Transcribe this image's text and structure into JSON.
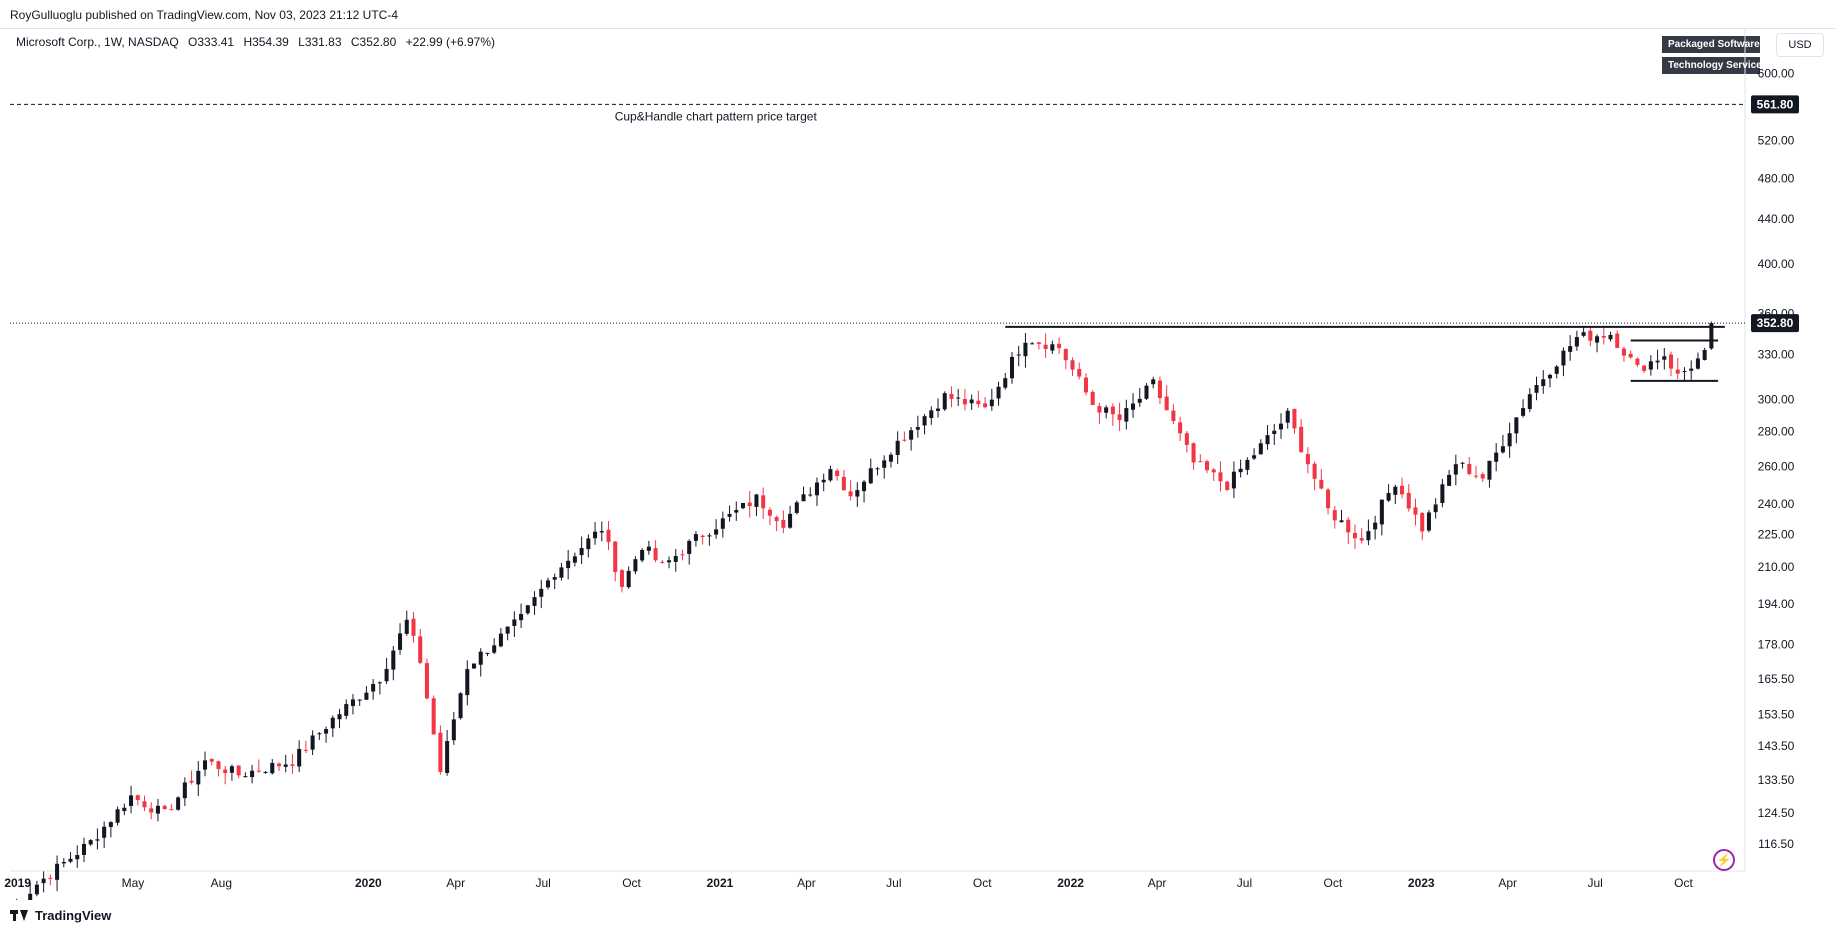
{
  "header": {
    "published": "RoyGulluoglu published on TradingView.com, Nov 03, 2023 21:12 UTC-4"
  },
  "symbol": {
    "name": "Microsoft Corp., 1W, NASDAQ",
    "open": "O333.41",
    "high": "H354.39",
    "low": "L331.83",
    "close": "C352.80",
    "change": "+22.99 (+6.97%)"
  },
  "badges": [
    "Packaged Software",
    "Technology Services"
  ],
  "currency": "USD",
  "brand": "TradingView",
  "colors": {
    "up": "#131722",
    "down": "#f23645",
    "tag": "#131722",
    "lightning": "#9c27b0"
  },
  "icons": {
    "lightning": "lightning-icon",
    "logo": "tradingview-logo-icon"
  },
  "chart_data": {
    "type": "candlestick",
    "scale": "log",
    "ylim": [
      110,
      620
    ],
    "y_ticks": [
      116.5,
      124.5,
      133.5,
      143.5,
      153.5,
      165.5,
      178.0,
      194.0,
      210.0,
      225.0,
      240.0,
      260.0,
      280.0,
      300.0,
      330.0,
      360.0,
      400.0,
      440.0,
      480.0,
      520.0,
      600.0
    ],
    "y_tick_labels": [
      "116.50",
      "124.50",
      "133.50",
      "143.50",
      "153.50",
      "165.50",
      "178.00",
      "194.00",
      "210.00",
      "225.00",
      "240.00",
      "260.00",
      "280.00",
      "300.00",
      "330.00",
      "360.00",
      "400.00",
      "440.00",
      "480.00",
      "520.00",
      "600.00"
    ],
    "x_range": [
      "2018-12-24",
      "2023-12-04"
    ],
    "x_ticks": [
      {
        "date": "2019-01-01",
        "label": "2019",
        "year": true
      },
      {
        "date": "2019-05-01",
        "label": "May",
        "year": false
      },
      {
        "date": "2019-08-01",
        "label": "Aug",
        "year": false
      },
      {
        "date": "2020-01-01",
        "label": "2020",
        "year": true
      },
      {
        "date": "2020-04-01",
        "label": "Apr",
        "year": false
      },
      {
        "date": "2020-07-01",
        "label": "Jul",
        "year": false
      },
      {
        "date": "2020-10-01",
        "label": "Oct",
        "year": false
      },
      {
        "date": "2021-01-01",
        "label": "2021",
        "year": true
      },
      {
        "date": "2021-04-01",
        "label": "Apr",
        "year": false
      },
      {
        "date": "2021-07-01",
        "label": "Jul",
        "year": false
      },
      {
        "date": "2021-10-01",
        "label": "Oct",
        "year": false
      },
      {
        "date": "2022-01-01",
        "label": "2022",
        "year": true
      },
      {
        "date": "2022-04-01",
        "label": "Apr",
        "year": false
      },
      {
        "date": "2022-07-01",
        "label": "Jul",
        "year": false
      },
      {
        "date": "2022-10-01",
        "label": "Oct",
        "year": false
      },
      {
        "date": "2023-01-01",
        "label": "2023",
        "year": true
      },
      {
        "date": "2023-04-01",
        "label": "Apr",
        "year": false
      },
      {
        "date": "2023-07-01",
        "label": "Jul",
        "year": false
      },
      {
        "date": "2023-10-01",
        "label": "Oct",
        "year": false
      }
    ],
    "anchors": [
      {
        "date": "2018-12-24",
        "price": 101
      },
      {
        "date": "2019-01-21",
        "price": 107
      },
      {
        "date": "2019-03-18",
        "price": 117
      },
      {
        "date": "2019-04-29",
        "price": 129
      },
      {
        "date": "2019-06-03",
        "price": 124
      },
      {
        "date": "2019-07-15",
        "price": 139
      },
      {
        "date": "2019-08-19",
        "price": 135
      },
      {
        "date": "2019-10-14",
        "price": 139
      },
      {
        "date": "2019-11-25",
        "price": 152
      },
      {
        "date": "2020-01-13",
        "price": 166
      },
      {
        "date": "2020-02-10",
        "price": 187
      },
      {
        "date": "2020-02-24",
        "price": 172
      },
      {
        "date": "2020-03-16",
        "price": 136
      },
      {
        "date": "2020-04-13",
        "price": 170
      },
      {
        "date": "2020-06-08",
        "price": 188
      },
      {
        "date": "2020-07-13",
        "price": 208
      },
      {
        "date": "2020-08-31",
        "price": 228
      },
      {
        "date": "2020-09-21",
        "price": 202
      },
      {
        "date": "2020-10-12",
        "price": 220
      },
      {
        "date": "2020-11-02",
        "price": 210
      },
      {
        "date": "2020-12-07",
        "price": 223
      },
      {
        "date": "2021-02-08",
        "price": 243
      },
      {
        "date": "2021-03-08",
        "price": 231
      },
      {
        "date": "2021-04-26",
        "price": 260
      },
      {
        "date": "2021-05-17",
        "price": 245
      },
      {
        "date": "2021-06-28",
        "price": 270
      },
      {
        "date": "2021-08-23",
        "price": 302
      },
      {
        "date": "2021-10-04",
        "price": 294
      },
      {
        "date": "2021-11-15",
        "price": 342
      },
      {
        "date": "2021-12-20",
        "price": 335
      },
      {
        "date": "2022-01-24",
        "price": 297
      },
      {
        "date": "2022-02-21",
        "price": 287
      },
      {
        "date": "2022-03-28",
        "price": 310
      },
      {
        "date": "2022-05-09",
        "price": 262
      },
      {
        "date": "2022-06-13",
        "price": 250
      },
      {
        "date": "2022-08-15",
        "price": 290
      },
      {
        "date": "2022-09-26",
        "price": 237
      },
      {
        "date": "2022-10-31",
        "price": 222
      },
      {
        "date": "2022-12-05",
        "price": 252
      },
      {
        "date": "2023-01-02",
        "price": 228
      },
      {
        "date": "2023-02-06",
        "price": 262
      },
      {
        "date": "2023-03-06",
        "price": 254
      },
      {
        "date": "2023-04-24",
        "price": 304
      },
      {
        "date": "2023-06-12",
        "price": 342
      },
      {
        "date": "2023-07-17",
        "price": 345
      },
      {
        "date": "2023-08-14",
        "price": 320
      },
      {
        "date": "2023-09-11",
        "price": 330
      },
      {
        "date": "2023-09-25",
        "price": 315
      },
      {
        "date": "2023-10-23",
        "price": 330
      },
      {
        "date": "2023-10-30",
        "price": 352.8
      }
    ],
    "volatility": 0.025,
    "lines": [
      {
        "kind": "resistance",
        "from": "2021-10-25",
        "to": "2023-11-13",
        "price": 350
      },
      {
        "kind": "handle-top",
        "from": "2023-08-07",
        "to": "2023-11-06",
        "price": 340
      },
      {
        "kind": "handle-bottom",
        "from": "2023-08-07",
        "to": "2023-11-06",
        "price": 312
      }
    ],
    "target": {
      "price": 561.8,
      "label": "561.80",
      "annotation": "Cup&Handle chart pattern price target"
    },
    "last_price": {
      "price": 352.8,
      "label": "352.80"
    }
  }
}
